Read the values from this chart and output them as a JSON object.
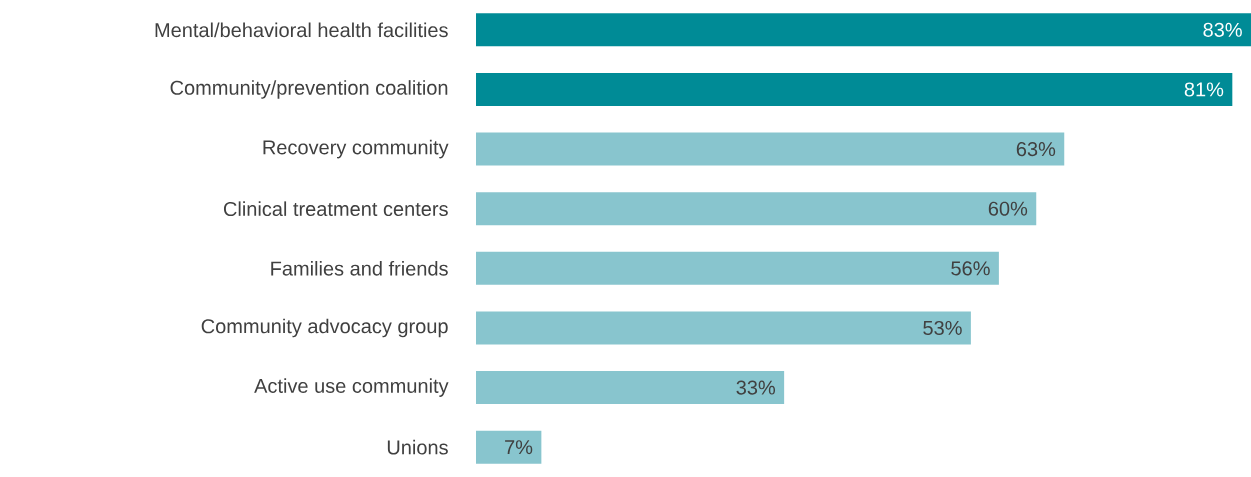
{
  "chart_data": {
    "type": "bar",
    "orientation": "horizontal",
    "categories": [
      "Mental/behavioral health facilities",
      "Community/prevention coalition",
      "Recovery community",
      "Clinical treatment centers",
      "Families and friends",
      "Community advocacy group",
      "Active use community",
      "Unions"
    ],
    "values": [
      83,
      81,
      63,
      60,
      56,
      53,
      33,
      7
    ],
    "colors": [
      "#008b96",
      "#008b96",
      "#88c5ce",
      "#88c5ce",
      "#88c5ce",
      "#88c5ce",
      "#88c5ce",
      "#88c5ce"
    ],
    "value_labels": [
      "83%",
      "81%",
      "63%",
      "60%",
      "56%",
      "53%",
      "33%",
      "7%"
    ]
  }
}
